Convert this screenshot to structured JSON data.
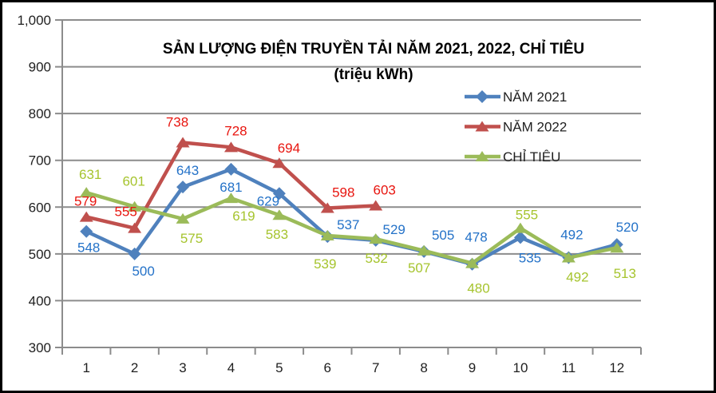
{
  "frame": {
    "background": "#ffffff",
    "border_color": "#000000"
  },
  "chart_data": {
    "type": "line",
    "title": "SẢN LƯỢNG ĐIỆN TRUYỀN TẢI NĂM 2021, 2022, CHỈ TIÊU",
    "subtitle": "(triệu kWh)",
    "xlabel": "",
    "ylabel": "",
    "categories": [
      "1",
      "2",
      "3",
      "4",
      "5",
      "6",
      "7",
      "8",
      "9",
      "10",
      "11",
      "12"
    ],
    "y_axis": {
      "min": 300,
      "max": 1000,
      "step": 100,
      "tick_values": [
        300,
        400,
        500,
        600,
        700,
        800,
        900,
        1000
      ],
      "tick_labels": [
        "300",
        "400",
        "500",
        "600",
        "700",
        "800",
        "900",
        "1,000"
      ]
    },
    "grid": true,
    "grid_color": "#8c8c8c",
    "legend_position": "inside-top-right",
    "series": [
      {
        "name": "NĂM 2021",
        "marker": "diamond",
        "line_color": "#4f81bd",
        "label_color": "#2472c8",
        "values": [
          548,
          500,
          643,
          681,
          629,
          537,
          529,
          505,
          478,
          535,
          492,
          520
        ],
        "label_offsets": [
          [
            3,
            20
          ],
          [
            11,
            21
          ],
          [
            6,
            -21
          ],
          [
            0,
            22
          ],
          [
            -14,
            9
          ],
          [
            26,
            -15
          ],
          [
            23,
            -14
          ],
          [
            24,
            -21
          ],
          [
            5,
            -34
          ],
          [
            12,
            25
          ],
          [
            4,
            -29
          ],
          [
            13,
            -22
          ]
        ]
      },
      {
        "name": "NĂM 2022",
        "marker": "triangle",
        "line_color": "#c0504d",
        "label_color": "#e8150f",
        "values": [
          579,
          555,
          738,
          728,
          694,
          598,
          603
        ],
        "label_offsets": [
          [
            -1,
            -20
          ],
          [
            -11,
            -21
          ],
          [
            -7,
            -26
          ],
          [
            6,
            -21
          ],
          [
            12,
            -19
          ],
          [
            20,
            -20
          ],
          [
            11,
            -20
          ]
        ]
      },
      {
        "name": "CHỈ TIÊU",
        "marker": "triangle",
        "line_color": "#9bbb59",
        "label_color": "#a6c42e",
        "values": [
          631,
          601,
          575,
          619,
          583,
          539,
          532,
          507,
          480,
          555,
          492,
          513
        ],
        "label_offsets": [
          [
            5,
            -23
          ],
          [
            -1,
            -32
          ],
          [
            11,
            24
          ],
          [
            16,
            22
          ],
          [
            -3,
            24
          ],
          [
            -3,
            35
          ],
          [
            1,
            24
          ],
          [
            -6,
            21
          ],
          [
            8,
            31
          ],
          [
            8,
            -17
          ],
          [
            11,
            24
          ],
          [
            10,
            32
          ]
        ]
      }
    ]
  }
}
